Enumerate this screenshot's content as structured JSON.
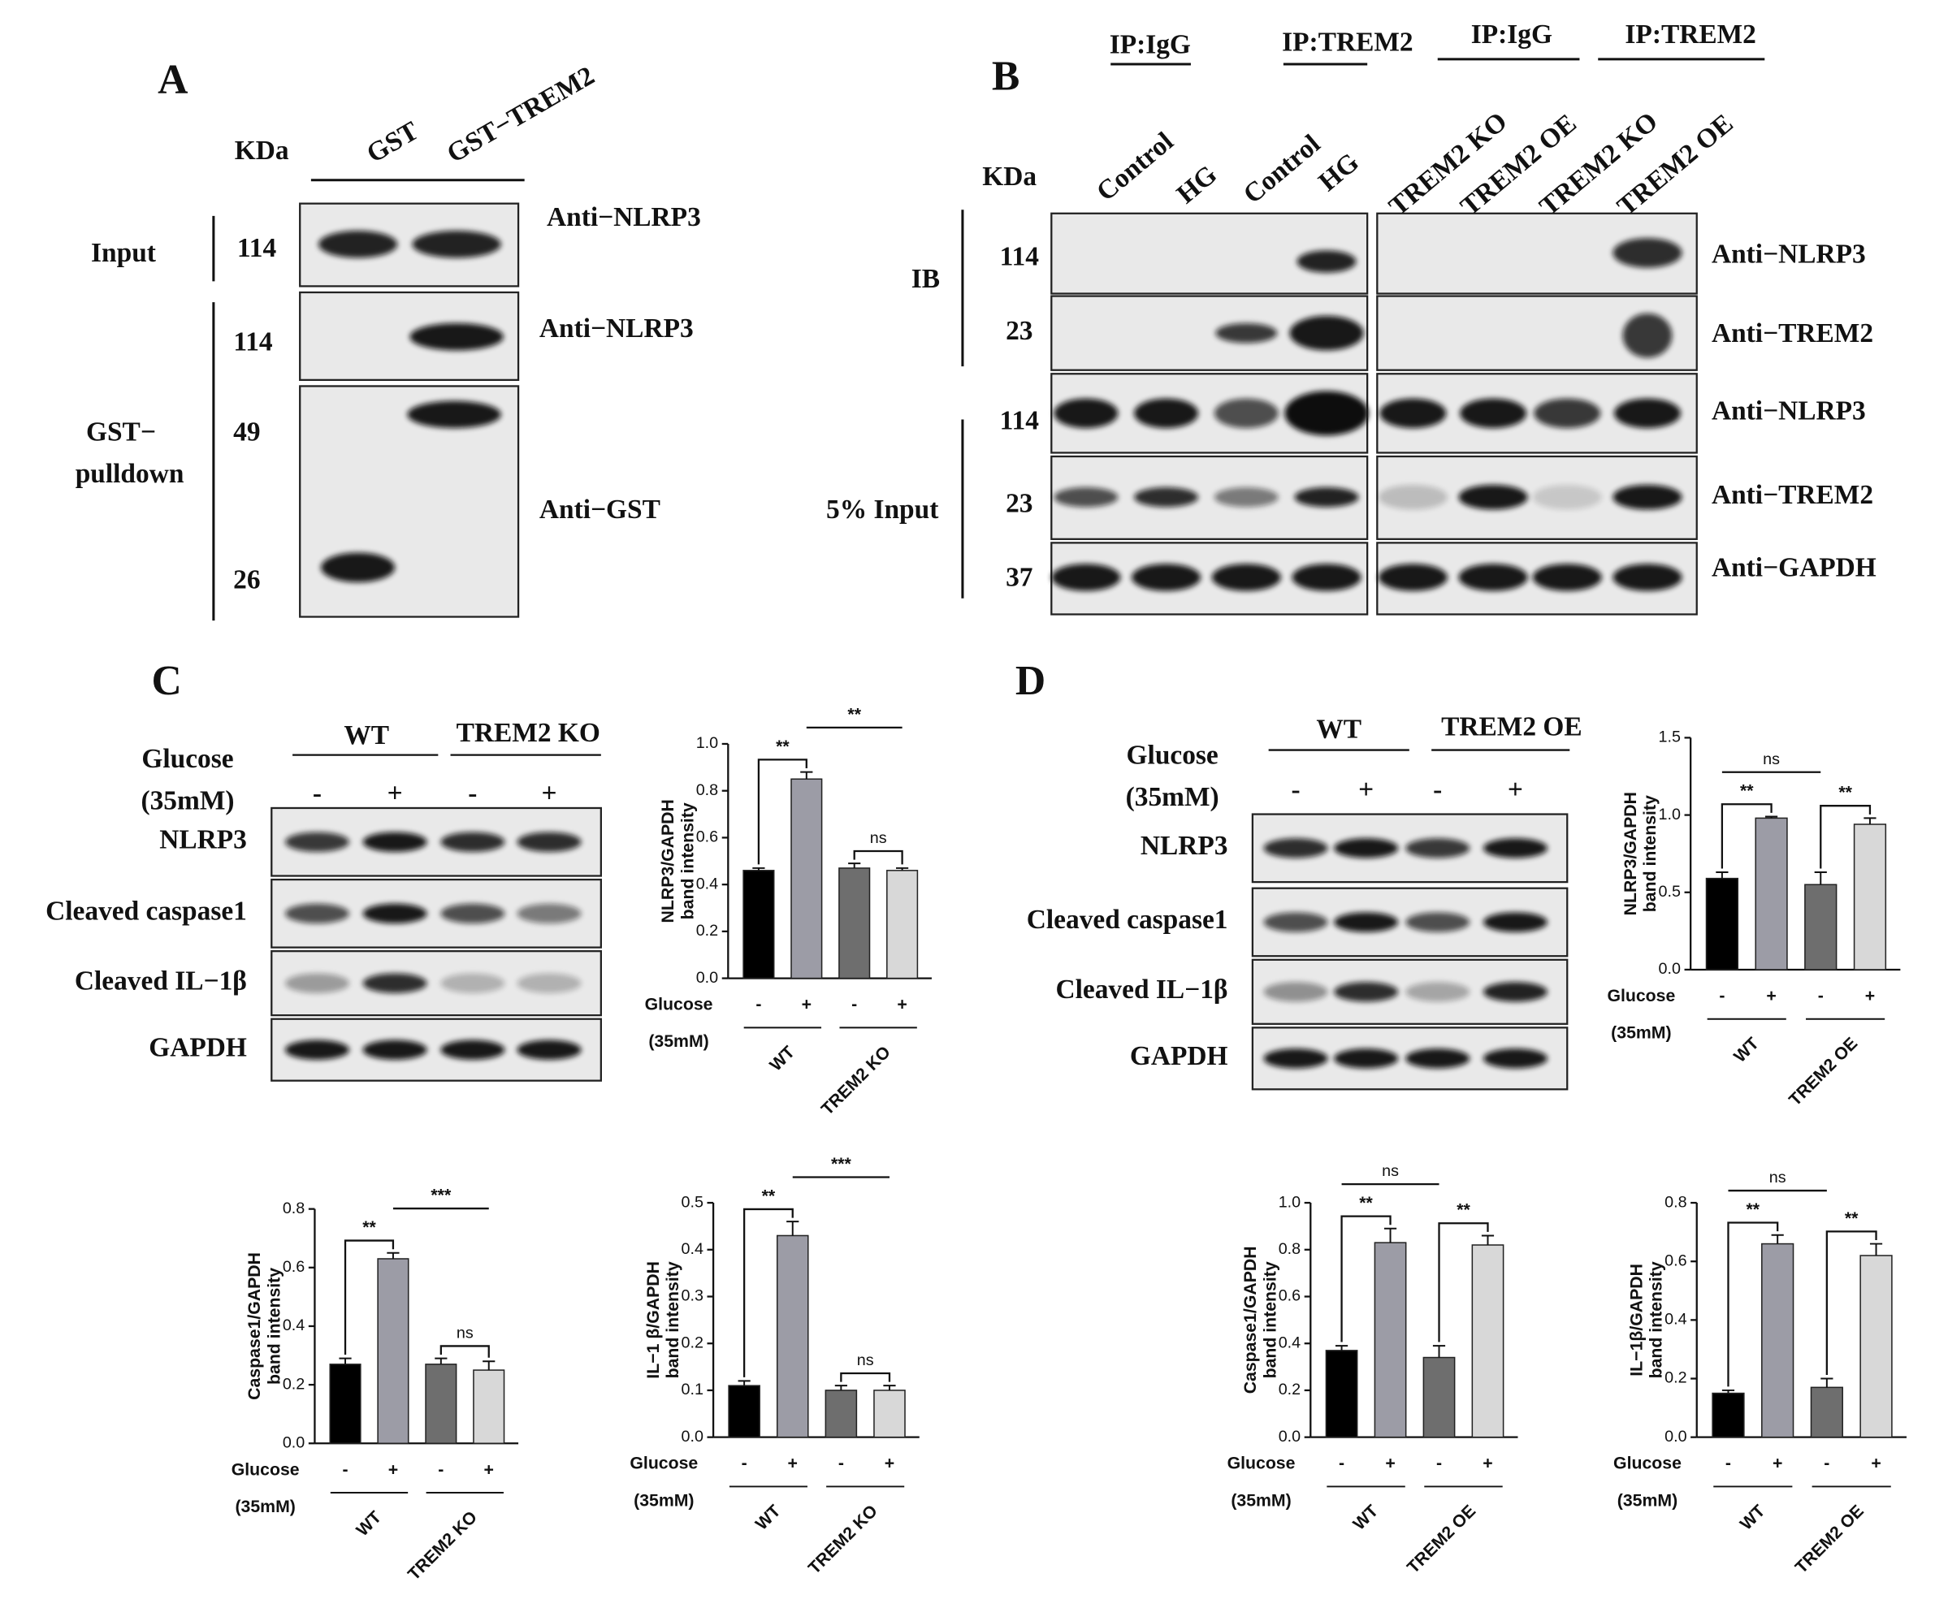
{
  "panel_a": {
    "letter": "A",
    "kda": "KDa",
    "lanes": [
      "GST",
      "GST−TREM2"
    ],
    "input": "Input",
    "pulldown": [
      "GST−",
      "pulldown"
    ],
    "mw": [
      "114",
      "114",
      "49",
      "26"
    ],
    "antibodies": [
      "Anti−NLRP3",
      "Anti−NLRP3",
      "Anti−GST"
    ]
  },
  "panel_b": {
    "letter": "B",
    "headers": [
      "IP:IgG",
      "IP:TREM2",
      "IP:IgG",
      "IP:TREM2"
    ],
    "lanes": [
      "Control",
      "HG",
      "Control",
      "HG",
      "TREM2 KO",
      "TREM2 OE",
      "TREM2 KO",
      "TREM2 OE"
    ],
    "kda": "KDa",
    "mw": [
      "114",
      "23",
      "114",
      "23",
      "37"
    ],
    "groups": [
      "IB",
      "5% Input"
    ],
    "antibodies": [
      "Anti−NLRP3",
      "Anti−TREM2",
      "Anti−NLRP3",
      "Anti−TREM2",
      "Anti−GAPDH"
    ]
  },
  "panel_c": {
    "letter": "C",
    "groups": [
      "WT",
      "TREM2 KO"
    ],
    "glucose": "Glucose",
    "conc": "(35mM)",
    "signs": [
      "-",
      "+",
      "-",
      "+"
    ],
    "rows": [
      "NLRP3",
      "Cleaved  caspase1",
      "Cleaved IL−1β",
      "GAPDH"
    ]
  },
  "panel_d": {
    "letter": "D",
    "groups": [
      "WT",
      "TREM2 OE"
    ],
    "glucose": "Glucose",
    "conc": "(35mM)",
    "signs": [
      "-",
      "+",
      "-",
      "+"
    ],
    "rows": [
      "NLRP3",
      "Cleaved  caspase1",
      "Cleaved IL−1β",
      "GAPDH"
    ]
  },
  "chart_data": [
    {
      "type": "bar",
      "ylabel": [
        "NLRP3/GAPDH",
        "band intensity"
      ],
      "ylim": [
        0,
        1.0
      ],
      "yticks": [
        {
          "value": 0,
          "label": "0.0"
        },
        {
          "value": 0.2,
          "label": "0.2"
        },
        {
          "value": 0.4,
          "label": "0.4"
        },
        {
          "value": 0.6,
          "label": "0.6"
        },
        {
          "value": 0.8,
          "label": "0.8"
        },
        {
          "value": 1.0,
          "label": "1.0"
        }
      ],
      "categories": [
        "-",
        "+",
        "-",
        "+"
      ],
      "values": [
        0.46,
        0.85,
        0.47,
        0.46
      ],
      "errors": [
        0.01,
        0.03,
        0.02,
        0.01
      ],
      "colors": [
        "#000000",
        "#9c9ca6",
        "#6e6e6e",
        "#d8d8d8"
      ],
      "glucose": "Glucose",
      "conc": "(35mM)",
      "groups": [
        "WT",
        "TREM2 KO"
      ],
      "annotations": [
        {
          "text": "**",
          "from": 0,
          "to": 1,
          "level": 1
        },
        {
          "text": "**",
          "from": 1,
          "to": 3,
          "level": 2
        },
        {
          "text": "ns",
          "from": 2,
          "to": 3,
          "level": 1
        }
      ]
    },
    {
      "type": "bar",
      "ylabel": [
        "Caspase1/GAPDH",
        "band intensity"
      ],
      "ylim": [
        0,
        0.8
      ],
      "yticks": [
        {
          "value": 0,
          "label": "0.0"
        },
        {
          "value": 0.2,
          "label": "0.2"
        },
        {
          "value": 0.4,
          "label": "0.4"
        },
        {
          "value": 0.6,
          "label": "0.6"
        },
        {
          "value": 0.8,
          "label": "0.8"
        }
      ],
      "categories": [
        "-",
        "+",
        "-",
        "+"
      ],
      "values": [
        0.27,
        0.63,
        0.27,
        0.25
      ],
      "errors": [
        0.02,
        0.02,
        0.02,
        0.03
      ],
      "colors": [
        "#000000",
        "#9c9ca6",
        "#6e6e6e",
        "#d8d8d8"
      ],
      "glucose": "Glucose",
      "conc": "(35mM)",
      "groups": [
        "WT",
        "TREM2 KO"
      ],
      "annotations": [
        {
          "text": "**",
          "from": 0,
          "to": 1,
          "level": 1
        },
        {
          "text": "***",
          "from": 1,
          "to": 3,
          "level": 2
        },
        {
          "text": "ns",
          "from": 2,
          "to": 3,
          "level": 1
        }
      ]
    },
    {
      "type": "bar",
      "ylabel": [
        "IL−1 β/GAPDH",
        "band intensity"
      ],
      "ylim": [
        0,
        0.5
      ],
      "yticks": [
        {
          "value": 0,
          "label": "0.0"
        },
        0.1,
        0.2,
        0.3,
        0.4,
        0.5
      ],
      "categories": [
        "-",
        "+",
        "-",
        "+"
      ],
      "values": [
        0.11,
        0.43,
        0.1,
        0.1
      ],
      "errors": [
        0.01,
        0.03,
        0.01,
        0.01
      ],
      "colors": [
        "#000000",
        "#9c9ca6",
        "#6e6e6e",
        "#d8d8d8"
      ],
      "glucose": "Glucose",
      "conc": "(35mM)",
      "groups": [
        "WT",
        "TREM2 KO"
      ],
      "annotations": [
        {
          "text": "**",
          "from": 0,
          "to": 1,
          "level": 1
        },
        {
          "text": "***",
          "from": 1,
          "to": 3,
          "level": 2
        },
        {
          "text": "ns",
          "from": 2,
          "to": 3,
          "level": 1
        }
      ]
    },
    {
      "type": "bar",
      "ylabel": [
        "NLRP3/GAPDH",
        "band intensity"
      ],
      "ylim": [
        0,
        1.5
      ],
      "yticks": [
        {
          "value": 0,
          "label": "0.0"
        },
        0.5,
        {
          "value": 1.0,
          "label": "1.0"
        },
        1.5
      ],
      "categories": [
        "-",
        "+",
        "-",
        "+"
      ],
      "values": [
        0.59,
        0.98,
        0.55,
        0.94
      ],
      "errors": [
        0.04,
        0.01,
        0.08,
        0.04
      ],
      "colors": [
        "#000000",
        "#9c9ca6",
        "#6e6e6e",
        "#d8d8d8"
      ],
      "glucose": "Glucose",
      "conc": "(35mM)",
      "groups": [
        "WT",
        "TREM2 OE"
      ],
      "annotations": [
        {
          "text": "**",
          "from": 0,
          "to": 1,
          "level": 1
        },
        {
          "text": "**",
          "from": 2,
          "to": 3,
          "level": 1
        },
        {
          "text": "ns",
          "from": 0,
          "to": 2,
          "level": 2
        }
      ]
    },
    {
      "type": "bar",
      "ylabel": [
        "Caspase1/GAPDH",
        "band intensity"
      ],
      "ylim": [
        0,
        1.0
      ],
      "yticks": [
        {
          "value": 0,
          "label": "0.0"
        },
        {
          "value": 0.2,
          "label": "0.2"
        },
        {
          "value": 0.4,
          "label": "0.4"
        },
        {
          "value": 0.6,
          "label": "0.6"
        },
        {
          "value": 0.8,
          "label": "0.8"
        },
        {
          "value": 1.0,
          "label": "1.0"
        }
      ],
      "categories": [
        "-",
        "+",
        "-",
        "+"
      ],
      "values": [
        0.37,
        0.83,
        0.34,
        0.82
      ],
      "errors": [
        0.02,
        0.06,
        0.05,
        0.04
      ],
      "colors": [
        "#000000",
        "#9c9ca6",
        "#6e6e6e",
        "#d8d8d8"
      ],
      "glucose": "Glucose",
      "conc": "(35mM)",
      "groups": [
        "WT",
        "TREM2 OE"
      ],
      "annotations": [
        {
          "text": "**",
          "from": 0,
          "to": 1,
          "level": 1
        },
        {
          "text": "**",
          "from": 2,
          "to": 3,
          "level": 1
        },
        {
          "text": "ns",
          "from": 0,
          "to": 2,
          "level": 2
        }
      ]
    },
    {
      "type": "bar",
      "ylabel": [
        "IL−1β/GAPDH",
        "band intensity"
      ],
      "ylim": [
        0,
        0.8
      ],
      "yticks": [
        {
          "value": 0,
          "label": "0.0"
        },
        {
          "value": 0.2,
          "label": "0.2"
        },
        {
          "value": 0.4,
          "label": "0.4"
        },
        {
          "value": 0.6,
          "label": "0.6"
        },
        {
          "value": 0.8,
          "label": "0.8"
        }
      ],
      "categories": [
        "-",
        "+",
        "-",
        "+"
      ],
      "values": [
        0.15,
        0.66,
        0.17,
        0.62
      ],
      "errors": [
        0.01,
        0.03,
        0.03,
        0.04
      ],
      "colors": [
        "#000000",
        "#9c9ca6",
        "#6e6e6e",
        "#d8d8d8"
      ],
      "glucose": "Glucose",
      "conc": "(35mM)",
      "groups": [
        "WT",
        "TREM2 OE"
      ],
      "annotations": [
        {
          "text": "**",
          "from": 0,
          "to": 1,
          "level": 1
        },
        {
          "text": "**",
          "from": 2,
          "to": 3,
          "level": 1
        },
        {
          "text": "ns",
          "from": 0,
          "to": 2,
          "level": 2
        }
      ]
    }
  ]
}
